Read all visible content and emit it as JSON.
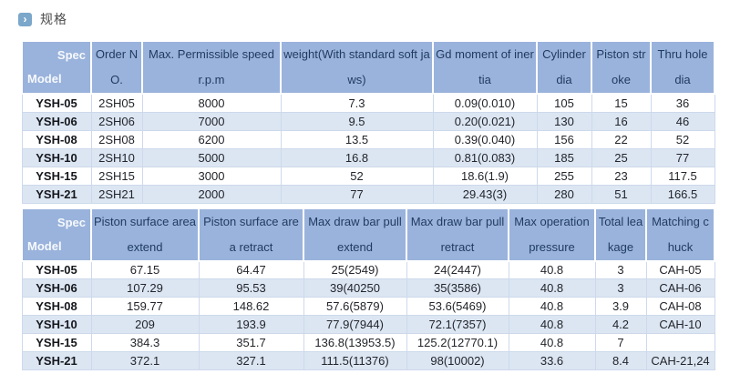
{
  "page": {
    "title": "规格",
    "title_icon": "chevron-right-icon",
    "title_icon_glyph": "›"
  },
  "colors": {
    "header_bg": "#9ab3dc",
    "header_text": "#1f3a5f",
    "alt_row_bg": "#dce6f3",
    "grid_border": "#cdd9eb",
    "title_icon_bg": "#7ba7ca"
  },
  "table1": {
    "corner": {
      "top": "Spec",
      "bottom": "Model"
    },
    "columns": [
      "Order NO.",
      "Max. Permissible speed r.p.m",
      "weight(With standard soft jaws)",
      "Gd moment of inertia",
      "Cylinder dia",
      "Piston stroke",
      "Thru hole dia"
    ],
    "rows": [
      {
        "model": "YSH-05",
        "cells": [
          "2SH05",
          "8000",
          "7.3",
          "0.09(0.010)",
          "105",
          "15",
          "36"
        ]
      },
      {
        "model": "YSH-06",
        "cells": [
          "2SH06",
          "7000",
          "9.5",
          "0.20(0.021)",
          "130",
          "16",
          "46"
        ]
      },
      {
        "model": "YSH-08",
        "cells": [
          "2SH08",
          "6200",
          "13.5",
          "0.39(0.040)",
          "156",
          "22",
          "52"
        ]
      },
      {
        "model": "YSH-10",
        "cells": [
          "2SH10",
          "5000",
          "16.8",
          "0.81(0.083)",
          "185",
          "25",
          "77"
        ]
      },
      {
        "model": "YSH-15",
        "cells": [
          "2SH15",
          "3000",
          "52",
          "18.6(1.9)",
          "255",
          "23",
          "117.5"
        ]
      },
      {
        "model": "YSH-21",
        "cells": [
          "2SH21",
          "2000",
          "77",
          "29.43(3)",
          "280",
          "51",
          "166.5"
        ]
      }
    ]
  },
  "table2": {
    "corner": {
      "top": "Spec",
      "bottom": "Model"
    },
    "columns": [
      "Piston surface area extend",
      "Piston surface area retract",
      "Max draw bar pull extend",
      "Max draw bar pull retract",
      "Max operation pressure",
      "Total leakage",
      "Matching chuck"
    ],
    "rows": [
      {
        "model": "YSH-05",
        "cells": [
          "67.15",
          "64.47",
          "25(2549)",
          "24(2447)",
          "40.8",
          "3",
          "CAH-05"
        ]
      },
      {
        "model": "YSH-06",
        "cells": [
          "107.29",
          "95.53",
          "39(40250",
          "35(3586)",
          "40.8",
          "3",
          "CAH-06"
        ]
      },
      {
        "model": "YSH-08",
        "cells": [
          "159.77",
          "148.62",
          "57.6(5879)",
          "53.6(5469)",
          "40.8",
          "3.9",
          "CAH-08"
        ]
      },
      {
        "model": "YSH-10",
        "cells": [
          "209",
          "193.9",
          "77.9(7944)",
          "72.1(7357)",
          "40.8",
          "4.2",
          "CAH-10"
        ]
      },
      {
        "model": "YSH-15",
        "cells": [
          "384.3",
          "351.7",
          "136.8(13953.5)",
          "125.2(12770.1)",
          "40.8",
          "7",
          ""
        ]
      },
      {
        "model": "YSH-21",
        "cells": [
          "372.1",
          "327.1",
          "111.5(11376)",
          "98(10002)",
          "33.6",
          "8.4",
          "CAH-21,24"
        ]
      }
    ]
  }
}
